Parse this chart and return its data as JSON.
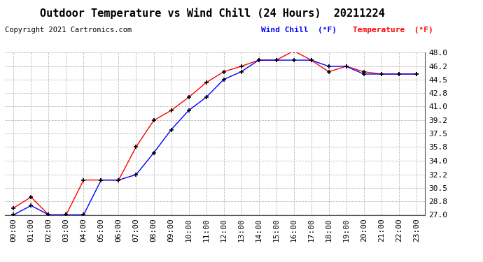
{
  "title": "Outdoor Temperature vs Wind Chill (24 Hours)  20211224",
  "copyright": "Copyright 2021 Cartronics.com",
  "wind_chill_label": "Wind Chill  (°F)",
  "temperature_label": "Temperature  (°F)",
  "wind_chill_color": "blue",
  "temperature_color": "red",
  "x_labels": [
    "00:00",
    "01:00",
    "02:00",
    "03:00",
    "04:00",
    "05:00",
    "06:00",
    "07:00",
    "08:00",
    "09:00",
    "10:00",
    "11:00",
    "12:00",
    "13:00",
    "14:00",
    "15:00",
    "16:00",
    "17:00",
    "18:00",
    "19:00",
    "20:00",
    "21:00",
    "22:00",
    "23:00"
  ],
  "temperature": [
    27.9,
    29.3,
    27.0,
    27.0,
    31.5,
    31.5,
    31.5,
    35.8,
    39.2,
    40.5,
    42.2,
    44.1,
    45.5,
    46.2,
    47.0,
    47.0,
    48.2,
    47.0,
    45.5,
    46.2,
    45.5,
    45.2,
    45.2,
    45.2
  ],
  "wind_chill": [
    27.0,
    28.2,
    27.0,
    27.0,
    27.0,
    31.5,
    31.5,
    32.2,
    35.0,
    38.0,
    40.5,
    42.2,
    44.5,
    45.5,
    47.0,
    47.0,
    47.0,
    47.0,
    46.2,
    46.2,
    45.2,
    45.2,
    45.2,
    45.2
  ],
  "ylim": [
    27.0,
    48.0
  ],
  "yticks": [
    27.0,
    28.8,
    30.5,
    32.2,
    34.0,
    35.8,
    37.5,
    39.2,
    41.0,
    42.8,
    44.5,
    46.2,
    48.0
  ],
  "background_color": "#ffffff",
  "grid_color": "#bbbbbb",
  "title_fontsize": 11,
  "tick_fontsize": 8,
  "copyright_fontsize": 7.5
}
